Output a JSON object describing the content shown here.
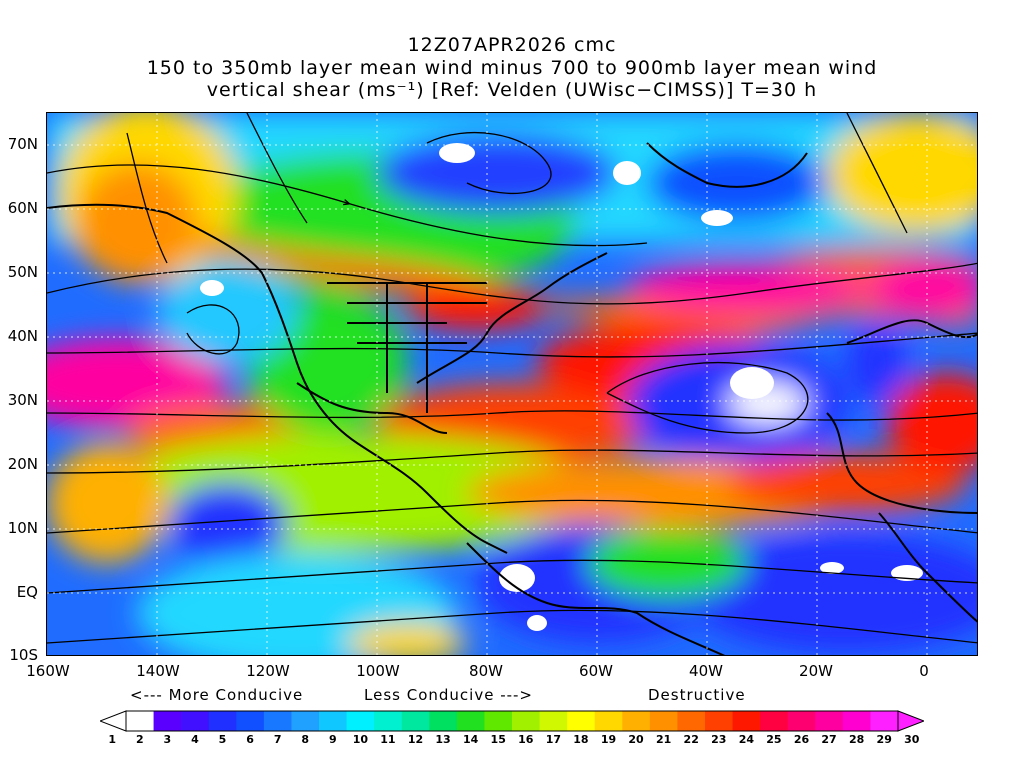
{
  "title": {
    "line1": "12Z07APR2026 cmc",
    "line2": "150 to 350mb layer mean wind minus 700 to 900mb layer mean wind",
    "line3": "vertical shear (ms⁻¹) [Ref: Velden (UWisc−CIMSS)] T=30 h"
  },
  "map": {
    "lat_labels": [
      "70N",
      "60N",
      "50N",
      "40N",
      "30N",
      "20N",
      "10N",
      "EQ",
      "10S"
    ],
    "lon_labels": [
      "160W",
      "140W",
      "120W",
      "100W",
      "80W",
      "60W",
      "40W",
      "20W",
      "0"
    ],
    "lon_range": [
      -160,
      10
    ],
    "lat_range": [
      -10,
      75
    ]
  },
  "legend": {
    "more_conducive": "<--- More Conducive",
    "less_conducive": "Less Conducive --->",
    "destructive": "Destructive",
    "ticks": [
      "1",
      "2",
      "3",
      "4",
      "5",
      "6",
      "7",
      "8",
      "9",
      "10",
      "11",
      "12",
      "13",
      "14",
      "15",
      "16",
      "17",
      "18",
      "19",
      "20",
      "21",
      "22",
      "23",
      "24",
      "25",
      "26",
      "27",
      "28",
      "29",
      "30"
    ],
    "colors": [
      "#ffffff",
      "#5a00ff",
      "#4010ff",
      "#2030ff",
      "#1050ff",
      "#1878ff",
      "#20a0ff",
      "#10c8ff",
      "#00f0ff",
      "#00f0d0",
      "#00e8a0",
      "#00e060",
      "#20e020",
      "#60e800",
      "#a0f000",
      "#d0f800",
      "#ffff00",
      "#ffd800",
      "#ffb000",
      "#ff9000",
      "#ff6800",
      "#ff4000",
      "#ff1800",
      "#ff0040",
      "#ff0070",
      "#ff00a0",
      "#ff00d0",
      "#ff20ff"
    ],
    "arrow_right_color": "#ff20ff",
    "arrow_left_color": "#ffffff"
  }
}
